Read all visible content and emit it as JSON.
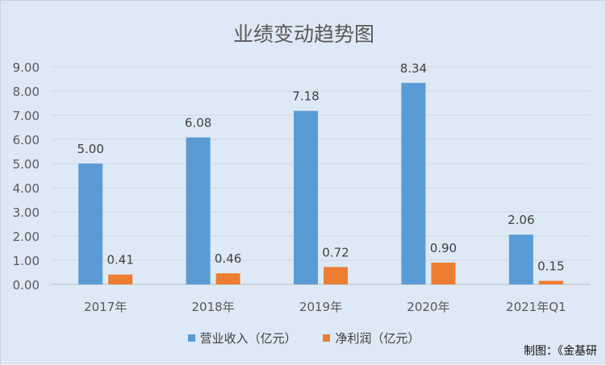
{
  "colors": {
    "background": "#dde9f6",
    "grid": "#d1d7de",
    "revenue": "#5b9bd5",
    "profit": "#ed7d31",
    "text": "#595959"
  },
  "credit": "制图：《金基研",
  "chart_data": {
    "type": "bar",
    "title": "业绩变动趋势图",
    "categories": [
      "2017年",
      "2018年",
      "2019年",
      "2020年",
      "2021年Q1"
    ],
    "series": [
      {
        "name": "营业收入（亿元）",
        "values": [
          5.0,
          6.08,
          7.18,
          8.34,
          2.06
        ],
        "labels": [
          "5.00",
          "6.08",
          "7.18",
          "8.34",
          "2.06"
        ]
      },
      {
        "name": "净利润（亿元）",
        "values": [
          0.41,
          0.46,
          0.72,
          0.9,
          0.15
        ],
        "labels": [
          "0.41",
          "0.46",
          "0.72",
          "0.90",
          "0.15"
        ]
      }
    ],
    "y_ticks": [
      "0.00",
      "1.00",
      "2.00",
      "3.00",
      "4.00",
      "5.00",
      "6.00",
      "7.00",
      "8.00",
      "9.00"
    ],
    "ylim": [
      0,
      9
    ],
    "grid": true,
    "legend_position": "bottom"
  }
}
